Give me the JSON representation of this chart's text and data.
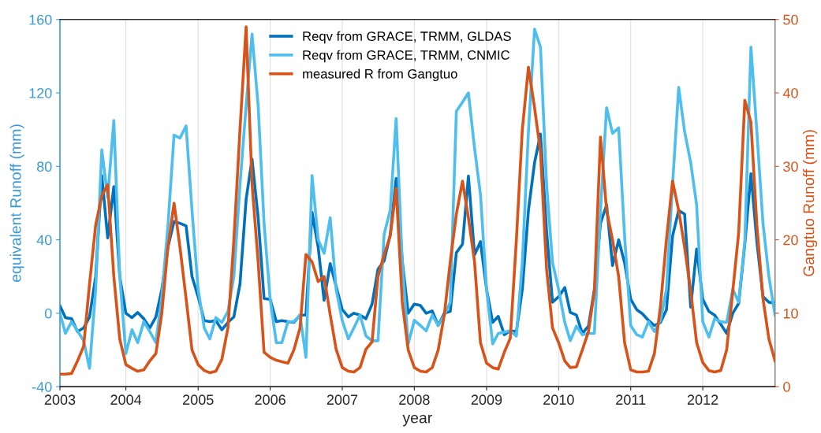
{
  "chart_data": {
    "type": "line",
    "xlabel": "year",
    "ylabel": "equivalent Runoff (mm)",
    "y2label": "Gangtuo Runoff (mm)",
    "x": [
      "2003-02",
      "2003-03",
      "2003-04",
      "2003-05",
      "2003-06",
      "2003-07",
      "2003-08",
      "2003-09",
      "2003-10",
      "2003-11",
      "2003-12",
      "2004-01",
      "2004-02",
      "2004-03",
      "2004-04",
      "2004-05",
      "2004-06",
      "2004-07",
      "2004-08",
      "2004-09",
      "2004-10",
      "2004-11",
      "2004-12",
      "2005-01",
      "2005-02",
      "2005-03",
      "2005-04",
      "2005-05",
      "2005-06",
      "2005-07",
      "2005-08",
      "2005-09",
      "2005-10",
      "2005-11",
      "2005-12",
      "2006-01",
      "2006-02",
      "2006-03",
      "2006-04",
      "2006-05",
      "2006-06",
      "2006-07",
      "2006-08",
      "2006-09",
      "2006-10",
      "2006-11",
      "2006-12",
      "2007-01",
      "2007-02",
      "2007-03",
      "2007-04",
      "2007-05",
      "2007-06",
      "2007-07",
      "2007-08",
      "2007-09",
      "2007-10",
      "2007-11",
      "2007-12",
      "2008-01",
      "2008-02",
      "2008-03",
      "2008-04",
      "2008-05",
      "2008-06",
      "2008-07",
      "2008-08",
      "2008-09",
      "2008-10",
      "2008-11",
      "2008-12",
      "2009-01",
      "2009-02",
      "2009-03",
      "2009-04",
      "2009-05",
      "2009-06",
      "2009-07",
      "2009-08",
      "2009-09",
      "2009-10",
      "2009-11",
      "2009-12",
      "2010-01",
      "2010-02",
      "2010-03",
      "2010-04",
      "2010-05",
      "2010-06",
      "2010-07",
      "2010-08",
      "2010-09",
      "2010-10",
      "2010-11",
      "2010-12",
      "2011-01",
      "2011-02",
      "2011-03",
      "2011-04",
      "2011-05",
      "2011-06",
      "2011-07",
      "2011-08",
      "2011-09",
      "2011-10",
      "2011-11",
      "2011-12",
      "2012-01",
      "2012-02",
      "2012-03",
      "2012-04",
      "2012-05",
      "2012-06",
      "2012-07",
      "2012-08",
      "2012-09",
      "2012-10",
      "2012-11",
      "2012-12",
      "2013-01"
    ],
    "series": [
      {
        "name": "Reqv from GRACE, TRMM, GLDAS",
        "color": "#0072bd",
        "values": [
          4,
          -2.4,
          -3,
          -10,
          -8,
          -2,
          20,
          75,
          41,
          69,
          20,
          0,
          -2.4,
          0.4,
          -3,
          -8,
          -2,
          13,
          36,
          50,
          49,
          47.6,
          20,
          9,
          -4,
          -4.6,
          -4,
          -9,
          -5,
          -2,
          16,
          62,
          84,
          52,
          8,
          7.6,
          -4.6,
          -4,
          -4.6,
          -5,
          -1,
          -1,
          55,
          36,
          7,
          27,
          14.7,
          2,
          -2,
          0,
          -1,
          -3,
          5,
          24,
          28.5,
          42.8,
          73.5,
          28.5,
          0,
          5,
          4.2,
          0,
          1.2,
          -6.6,
          0,
          1,
          33,
          37.6,
          74.7,
          31.8,
          39,
          13,
          -5,
          -1.7,
          -11.7,
          -9.5,
          -10,
          13,
          56,
          82,
          97.6,
          44.7,
          6,
          9,
          14,
          0.4,
          -1,
          -11,
          -7,
          13,
          49,
          59,
          26,
          40,
          27.5,
          7.6,
          1.9,
          -0.3,
          -3.9,
          -6.7,
          -5,
          1.9,
          42,
          56,
          54,
          3.3,
          35,
          7.6,
          1,
          -1,
          -6,
          -11,
          0,
          5.4,
          37.6,
          76,
          39,
          9,
          6,
          5.4
        ]
      },
      {
        "name": "Reqv from GRACE, TRMM, CNMIC",
        "color": "#4dbeee",
        "values": [
          0,
          -11,
          -4.6,
          -9.6,
          -15,
          -30,
          13,
          89,
          63,
          105,
          20,
          -22,
          -9,
          -16,
          -4.6,
          -10,
          -16,
          9,
          47.6,
          97,
          95.4,
          102,
          56,
          13,
          -8,
          -14,
          -2.4,
          -5,
          1,
          20,
          70,
          113,
          152,
          113,
          49,
          7.6,
          -16,
          -16,
          -4.6,
          -4.6,
          -1,
          -24,
          75,
          40,
          32.6,
          52,
          13,
          -4,
          -14,
          -8,
          -1,
          -12.4,
          -15,
          -15,
          43,
          56,
          106,
          27.6,
          -16.7,
          -3.9,
          -6.7,
          -9.6,
          -1,
          -6.7,
          -1,
          6,
          110,
          115,
          120,
          90,
          64.7,
          13,
          -16.7,
          -11,
          -10.3,
          -9.6,
          -12.4,
          27.6,
          99,
          154.7,
          145,
          70,
          27.6,
          13,
          -5,
          -15,
          -7,
          -11.7,
          -11,
          -11,
          56,
          112,
          98,
          101,
          42,
          -6.7,
          -11.7,
          -13,
          -4.6,
          -10,
          -3.9,
          13,
          70,
          123,
          99,
          82,
          59,
          -4.6,
          -13,
          -3,
          -4.6,
          -5,
          13,
          6,
          39,
          145,
          99,
          49,
          20,
          -1
        ]
      },
      {
        "name": "measured R from Gangtuo",
        "color": "#d95319",
        "axis": "y2",
        "values": [
          1.7,
          1.7,
          1.8,
          3.5,
          5.5,
          14,
          22,
          26,
          27.5,
          15,
          6.5,
          3,
          2.5,
          2.1,
          2.3,
          3.5,
          4.5,
          10,
          19,
          25,
          19,
          12,
          5,
          3,
          2.2,
          1.9,
          2.1,
          3.7,
          8,
          20,
          35,
          49,
          27.6,
          17,
          4.7,
          4,
          3.6,
          3.4,
          3.2,
          5,
          8,
          18,
          17,
          14.3,
          15,
          9.8,
          5.1,
          2.6,
          2.1,
          2,
          2.6,
          5.1,
          6.1,
          15,
          18,
          20.5,
          27,
          11.5,
          5,
          2.6,
          2.1,
          2,
          2.6,
          5,
          9.8,
          17,
          23.5,
          28,
          23,
          17,
          6,
          3.2,
          2.6,
          2.4,
          4.7,
          6.6,
          20,
          35,
          43.5,
          38,
          32,
          16,
          8,
          6,
          3.5,
          2.6,
          2.7,
          5,
          7.5,
          13,
          34,
          24,
          20,
          15,
          6,
          2.3,
          2,
          2,
          2.1,
          4.5,
          11,
          20,
          28,
          24,
          19,
          13,
          6,
          3.3,
          2.2,
          2,
          2.2,
          5,
          13,
          21,
          39,
          36,
          22,
          12,
          6.5,
          3.5
        ]
      }
    ],
    "xlim": [
      "2003-02",
      "2013-01"
    ],
    "xticks": [
      {
        "value": "2003-02",
        "label": "2003"
      },
      {
        "value": "2004",
        "label": "2004"
      },
      {
        "value": "2005",
        "label": "2005"
      },
      {
        "value": "2006",
        "label": "2006"
      },
      {
        "value": "2007",
        "label": "2007"
      },
      {
        "value": "2008",
        "label": "2008"
      },
      {
        "value": "2009",
        "label": "2009"
      },
      {
        "value": "2010",
        "label": "2010"
      },
      {
        "value": "2011",
        "label": "2011"
      },
      {
        "value": "2012",
        "label": "2012"
      }
    ],
    "ylim": [
      -40,
      160
    ],
    "yticks": [
      -40,
      0,
      40,
      80,
      120,
      160
    ],
    "y2lim": [
      0,
      50
    ],
    "y2ticks": [
      0,
      10,
      20,
      30,
      40,
      50
    ],
    "grid": "x",
    "legend": "top",
    "marker": "none",
    "line_style": "solid"
  }
}
